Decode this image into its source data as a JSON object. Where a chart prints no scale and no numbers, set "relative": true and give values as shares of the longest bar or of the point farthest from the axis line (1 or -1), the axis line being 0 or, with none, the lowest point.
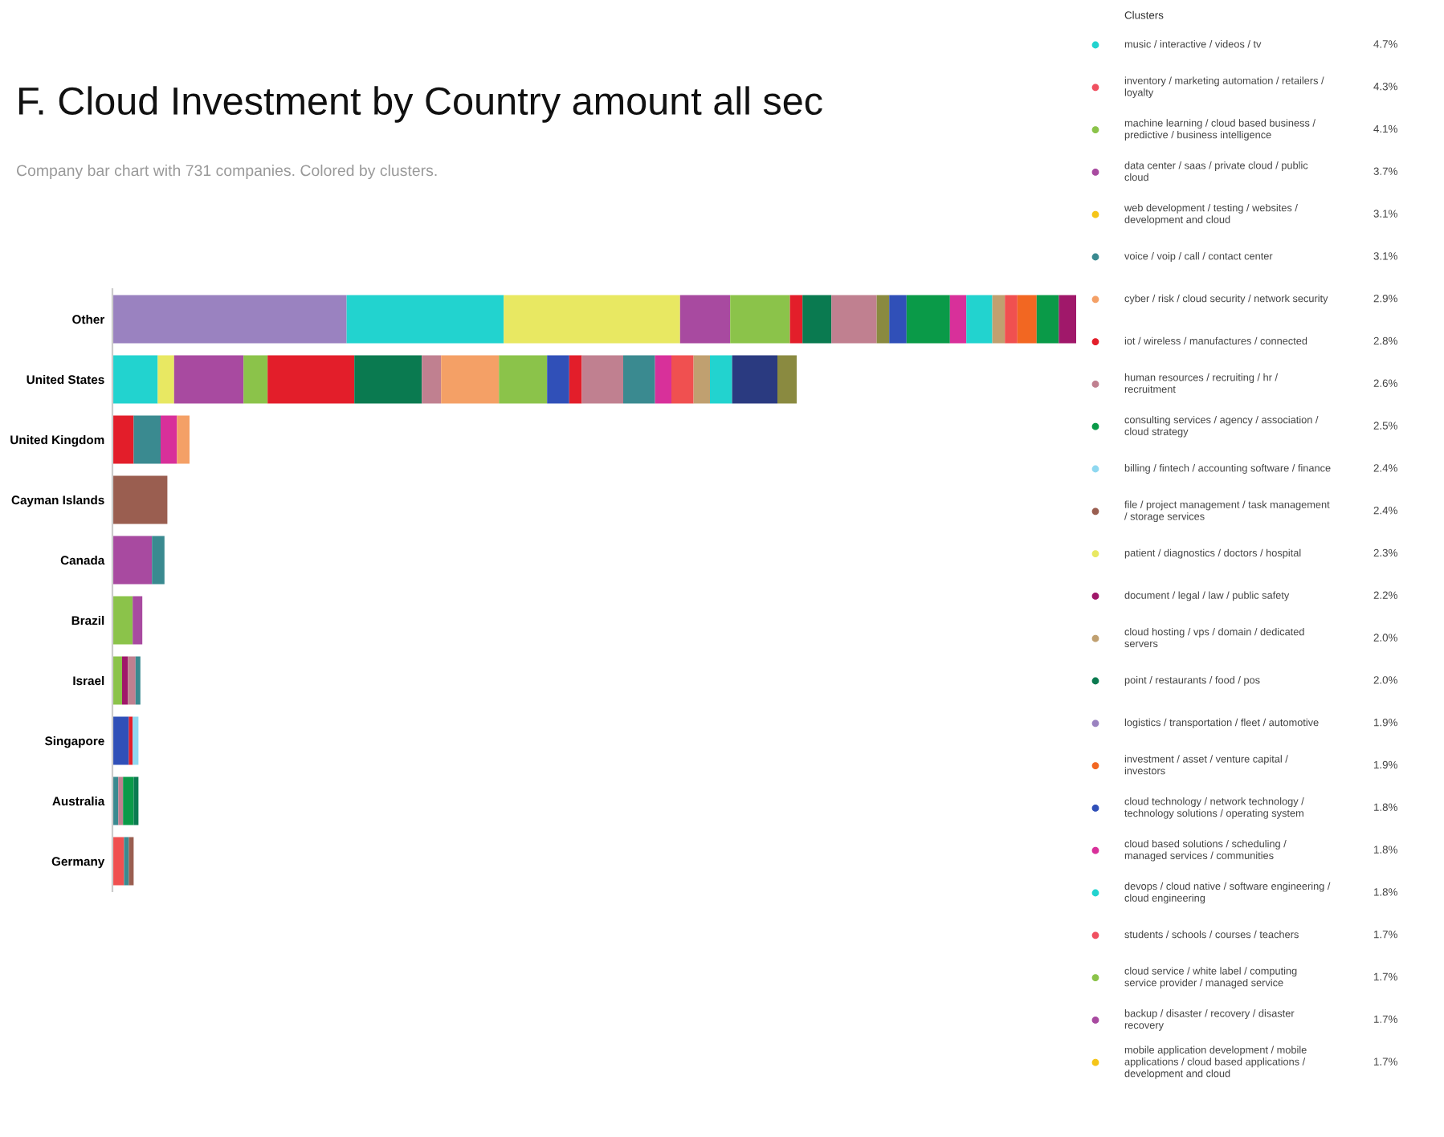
{
  "chart_data": [
    {
      "type": "bar",
      "orientation": "horizontal",
      "stacked": true,
      "relative": true,
      "title": "F. Cloud Investment by Country amount all sec",
      "subtitle": "Company bar chart with 731 companies. Colored by clusters.",
      "categories": [
        "Other",
        "United States",
        "United Kingdom",
        "Cayman Islands",
        "Canada",
        "Brazil",
        "Israel",
        "Singapore",
        "Australia",
        "Germany"
      ],
      "series": [
        {
          "values": [
            0.243,
            0.047,
            0.022,
            0.057,
            0.041,
            0.021,
            0.01,
            0.017,
            0.006,
            0.012
          ],
          "colors": [
            "#9a82c0",
            "#22d3cf",
            "#e31e2a",
            "#9a5e50",
            "#a84aa0",
            "#8bc34a",
            "#8bc34a",
            "#3050b8",
            "#3a8a90",
            "#f05050"
          ]
        },
        {
          "values": [
            0.163,
            0.017,
            0.028,
            null,
            0.013,
            0.01,
            0.006,
            0.004,
            0.005,
            0.005
          ],
          "colors": [
            "#22d3cf",
            "#e8e862",
            "#3a8a90",
            null,
            "#3a8a90",
            "#a84aa0",
            "#a0186a",
            "#e31e2a",
            "#c08090",
            "#3a8a90"
          ]
        },
        {
          "values": [
            0.183,
            0.072,
            0.017,
            null,
            null,
            null,
            0.008,
            0.006,
            0.011,
            0.005
          ],
          "colors": [
            "#e8e862",
            "#a84aa0",
            "#d8309a",
            null,
            null,
            null,
            "#c08090",
            "#8fd8f0",
            "#0a9a48",
            "#9a5e50"
          ]
        },
        {
          "values": [
            0.052,
            0.025,
            0.013,
            null,
            null,
            null,
            0.005,
            null,
            0.005,
            null
          ],
          "colors": [
            "#a84aa0",
            "#8bc34a",
            "#f4a066",
            null,
            null,
            null,
            "#3a8a90",
            null,
            "#0a7a50",
            null
          ]
        },
        {
          "values": [
            0.062,
            0.09,
            null,
            null,
            null,
            null,
            null,
            null,
            null,
            null
          ],
          "colors": [
            "#8bc34a",
            "#e31e2a",
            null,
            null,
            null,
            null,
            null,
            null,
            null,
            null
          ]
        },
        {
          "values": [
            0.013,
            0.07,
            null,
            null,
            null,
            null,
            null,
            null,
            null,
            null
          ],
          "colors": [
            "#e31e2a",
            "#0a7a50",
            null,
            null,
            null,
            null,
            null,
            null,
            null,
            null
          ]
        },
        {
          "values": [
            0.03,
            0.02,
            null,
            null,
            null,
            null,
            null,
            null,
            null,
            null
          ],
          "colors": [
            "#0a7a50",
            "#c08090",
            null,
            null,
            null,
            null,
            null,
            null,
            null,
            null
          ]
        },
        {
          "values": [
            0.047,
            0.06,
            null,
            null,
            null,
            null,
            null,
            null,
            null,
            null
          ],
          "colors": [
            "#c08090",
            "#f4a066",
            null,
            null,
            null,
            null,
            null,
            null,
            null,
            null
          ]
        },
        {
          "values": [
            0.013,
            0.05,
            null,
            null,
            null,
            null,
            null,
            null,
            null,
            null
          ],
          "colors": [
            "#8a8a40",
            "#8bc34a",
            null,
            null,
            null,
            null,
            null,
            null,
            null,
            null
          ]
        },
        {
          "values": [
            0.018,
            0.023,
            null,
            null,
            null,
            null,
            null,
            null,
            null,
            null
          ],
          "colors": [
            "#3050b8",
            "#3050b8",
            null,
            null,
            null,
            null,
            null,
            null,
            null,
            null
          ]
        },
        {
          "values": [
            0.045,
            0.013,
            null,
            null,
            null,
            null,
            null,
            null,
            null,
            null
          ],
          "colors": [
            "#0a9a48",
            "#e31e2a",
            null,
            null,
            null,
            null,
            null,
            null,
            null,
            null
          ]
        },
        {
          "values": [
            0.017,
            0.043,
            null,
            null,
            null,
            null,
            null,
            null,
            null,
            null
          ],
          "colors": [
            "#d8309a",
            "#c08090",
            null,
            null,
            null,
            null,
            null,
            null,
            null,
            null
          ]
        },
        {
          "values": [
            0.027,
            0.033,
            null,
            null,
            null,
            null,
            null,
            null,
            null,
            null
          ],
          "colors": [
            "#22d3cf",
            "#3a8a90",
            null,
            null,
            null,
            null,
            null,
            null,
            null,
            null
          ]
        },
        {
          "values": [
            0.013,
            0.017,
            null,
            null,
            null,
            null,
            null,
            null,
            null,
            null
          ],
          "colors": [
            "#c0a070",
            "#d8309a",
            null,
            null,
            null,
            null,
            null,
            null,
            null,
            null
          ]
        },
        {
          "values": [
            0.013,
            0.023,
            null,
            null,
            null,
            null,
            null,
            null,
            null,
            null
          ],
          "colors": [
            "#f05050",
            "#f05050",
            null,
            null,
            null,
            null,
            null,
            null,
            null,
            null
          ]
        },
        {
          "values": [
            0.02,
            0.017,
            null,
            null,
            null,
            null,
            null,
            null,
            null,
            null
          ],
          "colors": [
            "#f26722",
            "#c0a070",
            null,
            null,
            null,
            null,
            null,
            null,
            null,
            null
          ]
        },
        {
          "values": [
            0.023,
            0.023,
            null,
            null,
            null,
            null,
            null,
            null,
            null,
            null
          ],
          "colors": [
            "#0a9a48",
            "#22d3cf",
            null,
            null,
            null,
            null,
            null,
            null,
            null,
            null
          ]
        },
        {
          "values": [
            0.018,
            0.047,
            null,
            null,
            null,
            null,
            null,
            null,
            null,
            null
          ],
          "colors": [
            "#a0186a",
            "#2a3a80",
            null,
            null,
            null,
            null,
            null,
            null,
            null,
            null
          ]
        },
        {
          "values": [
            null,
            0.02,
            null,
            null,
            null,
            null,
            null,
            null,
            null,
            null
          ],
          "colors": [
            null,
            "#8a8a40",
            null,
            null,
            null,
            null,
            null,
            null,
            null,
            null
          ]
        }
      ]
    },
    {
      "type": "other",
      "title": "Clusters",
      "categories": [
        "music / interactive / videos / tv",
        "inventory / marketing automation / retailers /\nloyalty",
        "machine learning / cloud based business /\npredictive / business intelligence",
        "data center / saas / private cloud / public\ncloud",
        "web development / testing / websites /\ndevelopment and cloud",
        "voice / voip / call / contact center",
        "cyber / risk / cloud security / network security",
        "iot / wireless / manufactures / connected",
        "human resources / recruiting / hr /\nrecruitment",
        "consulting services / agency / association /\ncloud strategy",
        "billing / fintech / accounting software / finance",
        "file / project management / task management\n/ storage services",
        "patient / diagnostics / doctors / hospital",
        "document / legal / law / public safety",
        "cloud hosting / vps / domain / dedicated\nservers",
        "point / restaurants / food / pos",
        "logistics / transportation / fleet / automotive",
        "investment / asset / venture capital /\ninvestors",
        "cloud technology / network technology /\ntechnology solutions / operating system",
        "cloud based solutions / scheduling /\nmanaged services / communities",
        "devops / cloud native / software engineering /\ncloud engineering",
        "students / schools / courses / teachers",
        "cloud service / white label / computing\nservice provider / managed service",
        "backup / disaster / recovery / disaster\nrecovery",
        "mobile application development / mobile\napplications / cloud based applications /\ndevelopment and cloud"
      ],
      "value_labels": [
        "4.7%",
        "4.3%",
        "4.1%",
        "3.7%",
        "3.1%",
        "3.1%",
        "2.9%",
        "2.8%",
        "2.6%",
        "2.5%",
        "2.4%",
        "2.4%",
        "2.3%",
        "2.2%",
        "2.0%",
        "2.0%",
        "1.9%",
        "1.9%",
        "1.8%",
        "1.8%",
        "1.8%",
        "1.7%",
        "1.7%",
        "1.7%",
        "1.7%"
      ],
      "colors": [
        "#22d3cf",
        "#f05060",
        "#8bc34a",
        "#a84aa0",
        "#f5c518",
        "#3a8a90",
        "#f4a066",
        "#e31e2a",
        "#c08090",
        "#0a9a48",
        "#8fd8f0",
        "#9a5e50",
        "#e8e862",
        "#a0186a",
        "#c0a070",
        "#0a7a50",
        "#9a82c0",
        "#f26722",
        "#3050b8",
        "#d8309a",
        "#22d3cf",
        "#f05060",
        "#8bc34a",
        "#a84aa0",
        "#f5c518"
      ]
    }
  ]
}
